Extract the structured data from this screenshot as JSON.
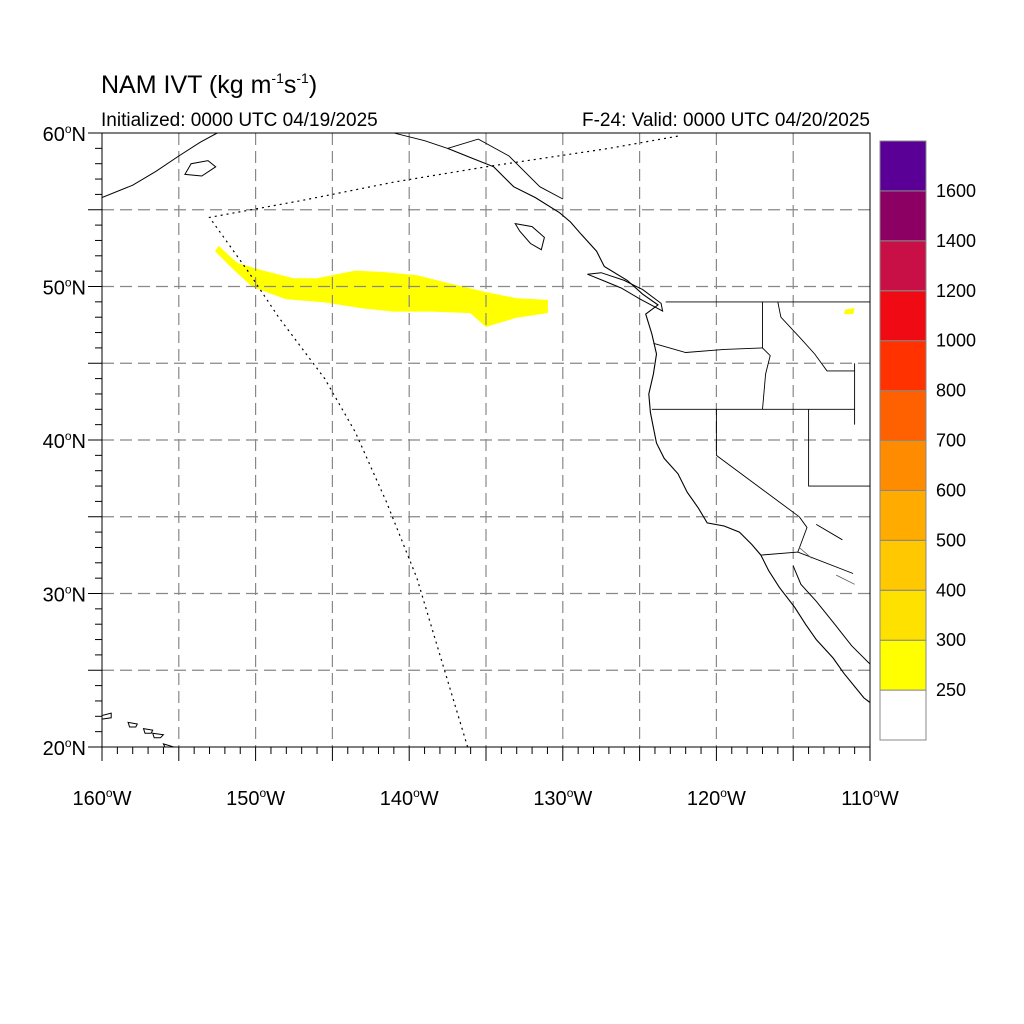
{
  "title": {
    "model": "NAM",
    "field": "IVT",
    "units_prefix": "(kg m",
    "units_exp1": "-1",
    "units_mid": "s",
    "units_exp2": "-1",
    "units_suffix": ")"
  },
  "init_text": "Initialized: 0000 UTC 04/19/2025",
  "valid_text": "F-24: Valid: 0000 UTC 04/20/2025",
  "axes": {
    "lon_range": [
      -160,
      -110
    ],
    "lat_range": [
      20,
      60
    ],
    "lon_ticks": [
      {
        "value": -160,
        "label": "160",
        "hemi": "W"
      },
      {
        "value": -150,
        "label": "150",
        "hemi": "W"
      },
      {
        "value": -140,
        "label": "140",
        "hemi": "W"
      },
      {
        "value": -130,
        "label": "130",
        "hemi": "W"
      },
      {
        "value": -120,
        "label": "120",
        "hemi": "W"
      },
      {
        "value": -110,
        "label": "110",
        "hemi": "W"
      }
    ],
    "lat_ticks": [
      {
        "value": 20,
        "label": "20",
        "hemi": "N"
      },
      {
        "value": 30,
        "label": "30",
        "hemi": "N"
      },
      {
        "value": 40,
        "label": "40",
        "hemi": "N"
      },
      {
        "value": 50,
        "label": "50",
        "hemi": "N"
      },
      {
        "value": 60,
        "label": "60",
        "hemi": "N"
      }
    ],
    "grid_lon": [
      -155,
      -150,
      -145,
      -140,
      -135,
      -130,
      -125,
      -120,
      -115
    ],
    "grid_lat": [
      25,
      30,
      35,
      40,
      45,
      50,
      55
    ]
  },
  "colorbar": {
    "labels": [
      "250",
      "300",
      "400",
      "500",
      "600",
      "700",
      "800",
      "1000",
      "1200",
      "1400",
      "1600"
    ],
    "colors": [
      "#ffffff",
      "#ffff00",
      "#ffe100",
      "#ffc800",
      "#ffab00",
      "#ff8c00",
      "#ff6000",
      "#ff3200",
      "#f00a14",
      "#c80f46",
      "#8c0064",
      "#5a0096"
    ]
  },
  "map_data": {
    "ivt_plume_color": "#ffff00",
    "ivt_plume_shade_color": "#ffe100",
    "ivt_plume_lonlat": [
      [
        -152.4,
        52.6
      ],
      [
        -151.2,
        51.5
      ],
      [
        -149.5,
        51.0
      ],
      [
        -147.5,
        50.5
      ],
      [
        -146.0,
        50.5
      ],
      [
        -143.5,
        51.0
      ],
      [
        -141.5,
        50.9
      ],
      [
        -139.5,
        50.7
      ],
      [
        -137.5,
        50.2
      ],
      [
        -135.0,
        49.6
      ],
      [
        -133.0,
        49.2
      ],
      [
        -131.0,
        49.1
      ],
      [
        -131.0,
        48.3
      ],
      [
        -133.0,
        48.0
      ],
      [
        -135.0,
        47.4
      ],
      [
        -136.0,
        48.3
      ],
      [
        -138.5,
        48.4
      ],
      [
        -141.0,
        48.4
      ],
      [
        -143.0,
        48.6
      ],
      [
        -145.5,
        49.0
      ],
      [
        -148.0,
        49.2
      ],
      [
        -150.2,
        50.0
      ],
      [
        -151.5,
        51.2
      ],
      [
        -152.6,
        52.3
      ]
    ],
    "small_patch_lonlat": [
      [
        -111.6,
        48.5
      ],
      [
        -111.0,
        48.6
      ],
      [
        -111.1,
        48.2
      ],
      [
        -111.7,
        48.2
      ]
    ],
    "nam_domain_boundary_lonlat": [
      [
        -136.2,
        20.0
      ],
      [
        -138.0,
        26.0
      ],
      [
        -139.5,
        31.0
      ],
      [
        -141.5,
        36.0
      ],
      [
        -143.5,
        40.5
      ],
      [
        -145.5,
        44.0
      ],
      [
        -148.5,
        48.0
      ],
      [
        -150.5,
        51.0
      ],
      [
        -153.0,
        54.5
      ],
      [
        -147.0,
        55.6
      ],
      [
        -141.0,
        56.8
      ],
      [
        -135.0,
        57.8
      ],
      [
        -127.0,
        59.0
      ],
      [
        -122.5,
        59.8
      ]
    ],
    "coastline_lonlat": [
      [
        -137.5,
        59.0
      ],
      [
        -136.0,
        58.4
      ],
      [
        -134.5,
        57.8
      ],
      [
        -133.2,
        56.5
      ],
      [
        -131.8,
        55.8
      ],
      [
        -130.2,
        54.8
      ],
      [
        -129.5,
        54.2
      ],
      [
        -128.8,
        53.4
      ],
      [
        -127.8,
        52.3
      ],
      [
        -127.3,
        51.3
      ],
      [
        -125.8,
        50.4
      ],
      [
        -124.8,
        49.5
      ],
      [
        -123.8,
        48.8
      ],
      [
        -124.6,
        48.2
      ],
      [
        -124.2,
        46.9
      ],
      [
        -123.9,
        45.6
      ],
      [
        -124.1,
        44.3
      ],
      [
        -124.4,
        43.0
      ],
      [
        -124.3,
        41.8
      ],
      [
        -124.1,
        40.8
      ],
      [
        -123.9,
        39.8
      ],
      [
        -123.4,
        38.8
      ],
      [
        -122.5,
        37.8
      ],
      [
        -121.9,
        36.6
      ],
      [
        -121.2,
        35.6
      ],
      [
        -120.6,
        34.6
      ],
      [
        -119.5,
        34.4
      ],
      [
        -118.5,
        34.0
      ],
      [
        -117.7,
        33.2
      ],
      [
        -117.1,
        32.5
      ],
      [
        -116.6,
        31.5
      ],
      [
        -115.9,
        30.4
      ],
      [
        -114.9,
        29.1
      ],
      [
        -114.2,
        28.0
      ],
      [
        -113.5,
        27.0
      ],
      [
        -112.4,
        25.8
      ],
      [
        -111.7,
        24.8
      ],
      [
        -110.4,
        23.2
      ],
      [
        -110.0,
        22.9
      ]
    ],
    "vancouver_island_lonlat": [
      [
        -128.4,
        50.8
      ],
      [
        -127.4,
        50.4
      ],
      [
        -126.2,
        49.9
      ],
      [
        -125.0,
        49.2
      ],
      [
        -123.5,
        48.4
      ],
      [
        -123.6,
        48.9
      ],
      [
        -124.8,
        49.8
      ],
      [
        -126.0,
        50.4
      ],
      [
        -127.5,
        50.9
      ]
    ],
    "haida_gwaii_lonlat": [
      [
        -133.1,
        54.1
      ],
      [
        -132.0,
        53.9
      ],
      [
        -131.2,
        53.2
      ],
      [
        -131.4,
        52.4
      ],
      [
        -132.1,
        52.8
      ],
      [
        -132.8,
        53.6
      ]
    ],
    "gulf_coast_lonlat": [
      [
        -115.0,
        31.8
      ],
      [
        -114.5,
        30.6
      ],
      [
        -113.5,
        29.5
      ],
      [
        -112.3,
        28.0
      ],
      [
        -111.2,
        26.6
      ],
      [
        -109.8,
        25.2
      ]
    ],
    "alaska_pen_lonlat": [
      [
        -160.0,
        55.8
      ],
      [
        -158.0,
        56.6
      ],
      [
        -156.5,
        57.5
      ],
      [
        -155.0,
        58.5
      ],
      [
        -153.6,
        59.4
      ],
      [
        -152.5,
        60.0
      ]
    ],
    "kodiak_lonlat": [
      [
        -154.6,
        57.3
      ],
      [
        -153.5,
        57.2
      ],
      [
        -152.6,
        57.8
      ],
      [
        -153.1,
        58.2
      ],
      [
        -154.2,
        58.0
      ]
    ],
    "hawaii_lonlat": [
      [
        [
          -160.2,
          22.0
        ],
        [
          -159.4,
          22.2
        ],
        [
          -159.4,
          21.9
        ],
        [
          -160.1,
          21.8
        ]
      ],
      [
        [
          -158.3,
          21.6
        ],
        [
          -157.7,
          21.5
        ],
        [
          -157.8,
          21.3
        ],
        [
          -158.2,
          21.3
        ]
      ],
      [
        [
          -157.3,
          21.2
        ],
        [
          -156.7,
          21.1
        ],
        [
          -156.8,
          20.9
        ],
        [
          -157.2,
          20.9
        ]
      ],
      [
        [
          -156.7,
          20.9
        ],
        [
          -156.0,
          20.8
        ],
        [
          -156.2,
          20.6
        ],
        [
          -156.6,
          20.6
        ]
      ],
      [
        [
          -156.0,
          20.2
        ],
        [
          -155.0,
          19.9
        ],
        [
          -155.8,
          19.8
        ]
      ]
    ],
    "border_lines_lonlat": [
      [
        [
          -123.3,
          49.0
        ],
        [
          -110.0,
          49.0
        ]
      ],
      [
        [
          -141.0,
          60.0
        ],
        [
          -139.0,
          59.5
        ],
        [
          -137.5,
          59.0
        ],
        [
          -135.5,
          59.6
        ],
        [
          -133.5,
          58.5
        ],
        [
          -131.5,
          56.5
        ],
        [
          -130.0,
          55.7
        ]
      ],
      [
        [
          -124.1,
          46.3
        ],
        [
          -122.0,
          45.7
        ],
        [
          -119.5,
          45.9
        ],
        [
          -117.0,
          46.0
        ]
      ],
      [
        [
          -124.2,
          42.0
        ],
        [
          -111.0,
          42.0
        ]
      ],
      [
        [
          -117.0,
          49.0
        ],
        [
          -117.0,
          46.0
        ],
        [
          -116.5,
          45.5
        ],
        [
          -116.8,
          44.3
        ],
        [
          -117.0,
          42.0
        ]
      ],
      [
        [
          -120.0,
          42.0
        ],
        [
          -120.0,
          39.0
        ],
        [
          -114.6,
          35.0
        ]
      ],
      [
        [
          -114.6,
          35.0
        ],
        [
          -114.1,
          34.3
        ],
        [
          -114.7,
          32.7
        ]
      ],
      [
        [
          -114.0,
          42.0
        ],
        [
          -114.0,
          37.0
        ],
        [
          -110.0,
          37.0
        ]
      ],
      [
        [
          -111.0,
          45.0
        ],
        [
          -111.0,
          41.0
        ]
      ],
      [
        [
          -117.1,
          32.5
        ],
        [
          -114.7,
          32.7
        ],
        [
          -111.1,
          31.3
        ]
      ],
      [
        [
          -116.0,
          49.0
        ],
        [
          -115.8,
          48.0
        ],
        [
          -114.5,
          46.6
        ],
        [
          -113.6,
          45.6
        ],
        [
          -112.8,
          44.5
        ],
        [
          -111.0,
          44.5
        ]
      ],
      [
        [
          -113.5,
          34.5
        ],
        [
          -111.8,
          33.5
        ]
      ]
    ],
    "rivers_lonlat": [
      [
        [
          -112.2,
          31.2
        ],
        [
          -111.0,
          30.6
        ]
      ],
      [
        [
          -114.6,
          33.0
        ],
        [
          -113.8,
          32.3
        ]
      ]
    ]
  }
}
